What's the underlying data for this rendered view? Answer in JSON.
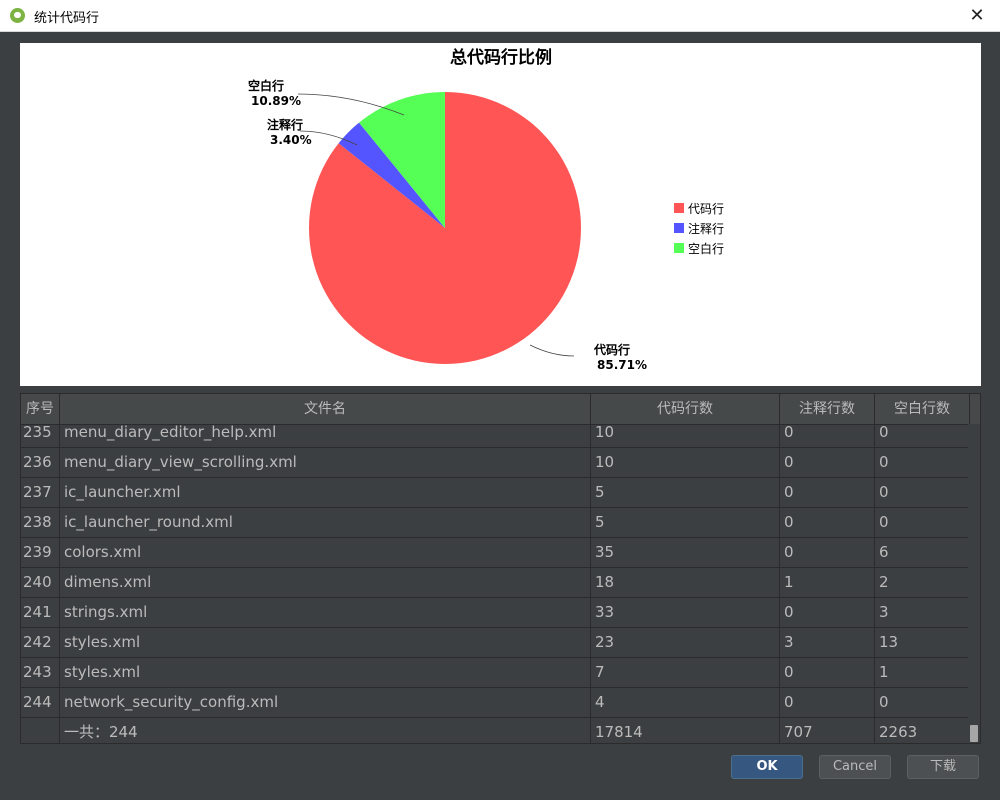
{
  "window": {
    "title": "统计代码行",
    "close_glyph": "✕"
  },
  "chart_data": {
    "type": "pie",
    "title": "总代码行比例",
    "slices": [
      {
        "label": "代码行",
        "percent": 85.71,
        "percent_text": "85.71%",
        "color": "#ff5555"
      },
      {
        "label": "注释行",
        "percent": 3.4,
        "percent_text": "3.40%",
        "color": "#5555ff"
      },
      {
        "label": "空白行",
        "percent": 10.89,
        "percent_text": "10.89%",
        "color": "#55ff55"
      }
    ],
    "legend": {
      "placement": "right",
      "entries": [
        "代码行",
        "注释行",
        "空白行"
      ]
    }
  },
  "table": {
    "headers": [
      "序号",
      "文件名",
      "代码行数",
      "注释行数",
      "空白行数"
    ],
    "rows": [
      [
        "235",
        "menu_diary_editor_help.xml",
        "10",
        "0",
        "0"
      ],
      [
        "236",
        "menu_diary_view_scrolling.xml",
        "10",
        "0",
        "0"
      ],
      [
        "237",
        "ic_launcher.xml",
        "5",
        "0",
        "0"
      ],
      [
        "238",
        "ic_launcher_round.xml",
        "5",
        "0",
        "0"
      ],
      [
        "239",
        "colors.xml",
        "35",
        "0",
        "6"
      ],
      [
        "240",
        "dimens.xml",
        "18",
        "1",
        "2"
      ],
      [
        "241",
        "strings.xml",
        "33",
        "0",
        "3"
      ],
      [
        "242",
        "styles.xml",
        "23",
        "3",
        "13"
      ],
      [
        "243",
        "styles.xml",
        "7",
        "0",
        "1"
      ],
      [
        "244",
        "network_security_config.xml",
        "4",
        "0",
        "0"
      ],
      [
        "",
        "一共：244",
        "17814",
        "707",
        "2263"
      ]
    ]
  },
  "buttons": {
    "ok": "OK",
    "cancel": "Cancel",
    "download": "下载"
  }
}
